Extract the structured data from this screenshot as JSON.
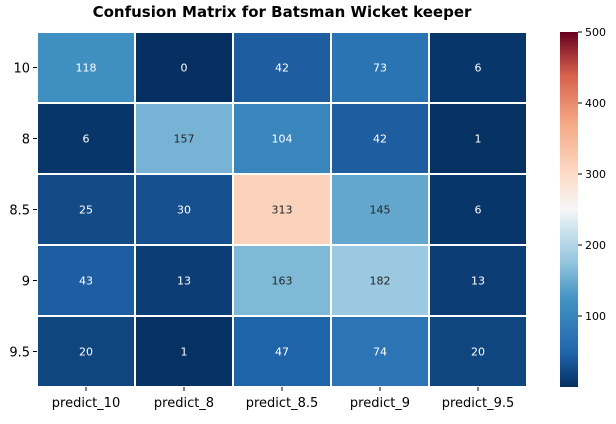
{
  "chart_data": {
    "type": "heatmap",
    "title": "Confusion Matrix for Batsman Wicket keeper",
    "x_labels": [
      "predict_10",
      "predict_8",
      "predict_8.5",
      "predict_9",
      "predict_9.5"
    ],
    "y_labels": [
      "10",
      "8",
      "8.5",
      "9",
      "9.5"
    ],
    "values": [
      [
        118,
        0,
        42,
        73,
        6
      ],
      [
        6,
        157,
        104,
        42,
        1
      ],
      [
        25,
        30,
        313,
        145,
        6
      ],
      [
        43,
        13,
        163,
        182,
        13
      ],
      [
        20,
        1,
        47,
        74,
        20
      ]
    ],
    "colormap": "RdBu_r",
    "vmin": 0,
    "vmax": 500,
    "colorbar_ticks": [
      100,
      200,
      300,
      400,
      500
    ],
    "grid_line_color": "#ffffff"
  }
}
